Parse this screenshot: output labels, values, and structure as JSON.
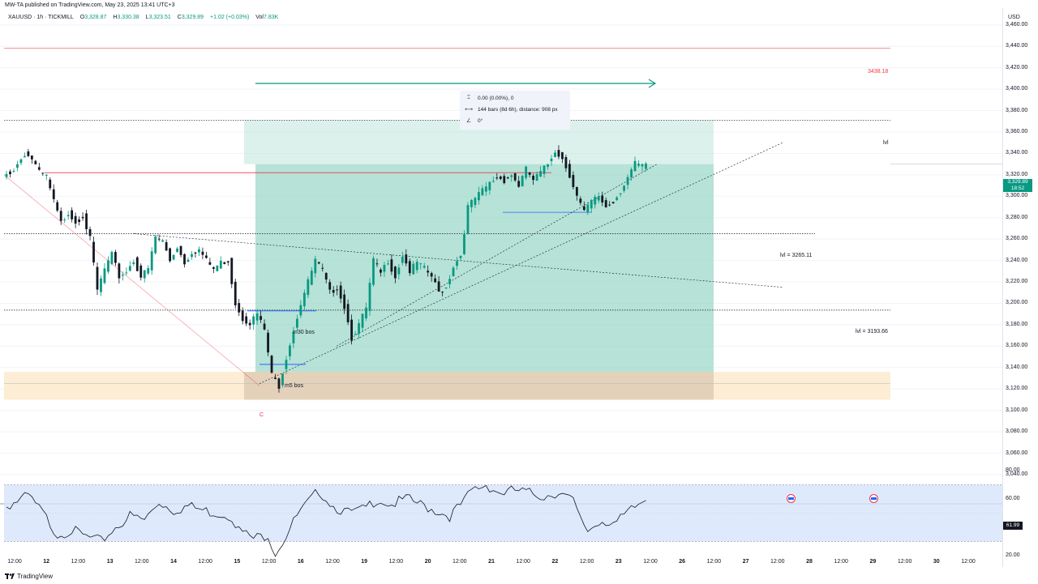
{
  "header": {
    "published": "MW-TA published on TradingView.com, May 23, 2025 13:41 UTC+3"
  },
  "legend": {
    "symbol": "XAUUSD · 1h · TICKMILL",
    "open_label": "O",
    "open": "3,328.87",
    "high_label": "H",
    "high": "3,330.38",
    "low_label": "L",
    "low": "3,323.51",
    "close_label": "C",
    "close": "3,329.89",
    "change": "+1.02 (+0.03%)",
    "vol_label": "Vol",
    "vol": "7.83K"
  },
  "price_axis": {
    "currency": "USD",
    "labels": [
      "3,460.00",
      "3,440.00",
      "3,420.00",
      "3,400.00",
      "3,380.00",
      "3,360.00",
      "3,340.00",
      "3,320.00",
      "3,300.00",
      "3,280.00",
      "3,260.00",
      "3,240.00",
      "3,220.00",
      "3,200.00",
      "3,180.00",
      "3,160.00",
      "3,140.00",
      "3,120.00",
      "3,100.00",
      "3,080.00",
      "3,060.00",
      "3,040.00"
    ],
    "current_price": "3,329.89",
    "countdown": "18:52"
  },
  "rsi_axis": {
    "labels": [
      "80.00",
      "60.00",
      "40.00",
      "20.00"
    ],
    "current": "61.99"
  },
  "time_axis": {
    "labels": [
      "12:00",
      "12",
      "12:00",
      "13",
      "12:00",
      "14",
      "12:00",
      "15",
      "12:00",
      "16",
      "12:00",
      "19",
      "12:00",
      "20",
      "12:00",
      "21",
      "12:00",
      "22",
      "12:00",
      "23",
      "12:00",
      "26",
      "12:00",
      "27",
      "12:00",
      "28",
      "12:00",
      "29",
      "12:00",
      "30",
      "12:00"
    ]
  },
  "measure_box": {
    "price_range": "0.00 (0.00%), 0",
    "bars_range": "144 bars (8d 6h), distance: 908 px",
    "angle": "0°"
  },
  "annotations": {
    "level_3438": "3438.18",
    "lvl": "lvl",
    "lvl_3265": "lvl = 3265.11",
    "lvl_3193": "lvl = 3193.66",
    "m30_bos": "m30 bos",
    "m5_bos": "m5 bos",
    "c_label": "C"
  },
  "footer": {
    "brand": "TradingView"
  },
  "colors": {
    "up": "#089981",
    "down": "#131722",
    "zone_green": "#9ed8c9",
    "zone_orange": "#fdebcf",
    "accent_red": "#f23645",
    "accent_blue": "#2962ff",
    "rsi": "#131722",
    "rsi_band": "#d6e4fb"
  },
  "chart_data": {
    "type": "candlestick",
    "symbol": "XAUUSD",
    "timeframe": "1h",
    "ylim": [
      3030,
      3475
    ],
    "rsi_ylim": [
      20,
      80
    ],
    "horizontal_levels": [
      3438.18,
      3371,
      3265.11,
      3193.66
    ],
    "price_path": [
      [
        0,
        3318
      ],
      [
        3,
        3325
      ],
      [
        6,
        3340
      ],
      [
        8,
        3335
      ],
      [
        10,
        3322
      ],
      [
        12,
        3318
      ],
      [
        14,
        3295
      ],
      [
        16,
        3275
      ],
      [
        18,
        3285
      ],
      [
        20,
        3276
      ],
      [
        22,
        3282
      ],
      [
        24,
        3260
      ],
      [
        26,
        3212
      ],
      [
        28,
        3232
      ],
      [
        30,
        3245
      ],
      [
        32,
        3225
      ],
      [
        34,
        3230
      ],
      [
        36,
        3240
      ],
      [
        38,
        3225
      ],
      [
        40,
        3232
      ],
      [
        42,
        3262
      ],
      [
        44,
        3258
      ],
      [
        46,
        3240
      ],
      [
        48,
        3253
      ],
      [
        50,
        3238
      ],
      [
        52,
        3248
      ],
      [
        54,
        3250
      ],
      [
        56,
        3240
      ],
      [
        58,
        3232
      ],
      [
        60,
        3238
      ],
      [
        62,
        3240
      ],
      [
        64,
        3200
      ],
      [
        66,
        3186
      ],
      [
        68,
        3182
      ],
      [
        70,
        3190
      ],
      [
        72,
        3175
      ],
      [
        74,
        3133
      ],
      [
        76,
        3123
      ],
      [
        78,
        3150
      ],
      [
        80,
        3175
      ],
      [
        82,
        3200
      ],
      [
        84,
        3220
      ],
      [
        86,
        3240
      ],
      [
        88,
        3230
      ],
      [
        90,
        3210
      ],
      [
        92,
        3215
      ],
      [
        94,
        3197
      ],
      [
        96,
        3168
      ],
      [
        98,
        3180
      ],
      [
        100,
        3195
      ],
      [
        102,
        3240
      ],
      [
        104,
        3228
      ],
      [
        106,
        3240
      ],
      [
        108,
        3225
      ],
      [
        110,
        3245
      ],
      [
        112,
        3230
      ],
      [
        114,
        3238
      ],
      [
        116,
        3232
      ],
      [
        118,
        3225
      ],
      [
        120,
        3210
      ],
      [
        122,
        3215
      ],
      [
        124,
        3235
      ],
      [
        126,
        3245
      ],
      [
        128,
        3290
      ],
      [
        130,
        3298
      ],
      [
        132,
        3305
      ],
      [
        134,
        3312
      ],
      [
        136,
        3318
      ],
      [
        138,
        3315
      ],
      [
        140,
        3320
      ],
      [
        142,
        3310
      ],
      [
        144,
        3325
      ],
      [
        146,
        3315
      ],
      [
        148,
        3322
      ],
      [
        150,
        3330
      ],
      [
        152,
        3343
      ],
      [
        154,
        3335
      ],
      [
        156,
        3320
      ],
      [
        158,
        3300
      ],
      [
        160,
        3285
      ],
      [
        162,
        3295
      ],
      [
        164,
        3300
      ],
      [
        166,
        3290
      ],
      [
        168,
        3295
      ],
      [
        170,
        3305
      ],
      [
        172,
        3318
      ],
      [
        174,
        3330
      ],
      [
        176,
        3328
      ]
    ],
    "rsi_path": [
      [
        0,
        55
      ],
      [
        6,
        62
      ],
      [
        10,
        50
      ],
      [
        14,
        35
      ],
      [
        18,
        38
      ],
      [
        22,
        33
      ],
      [
        26,
        30
      ],
      [
        30,
        40
      ],
      [
        34,
        48
      ],
      [
        38,
        45
      ],
      [
        42,
        58
      ],
      [
        46,
        52
      ],
      [
        50,
        55
      ],
      [
        54,
        52
      ],
      [
        58,
        50
      ],
      [
        62,
        48
      ],
      [
        64,
        38
      ],
      [
        68,
        32
      ],
      [
        72,
        35
      ],
      [
        74,
        22
      ],
      [
        76,
        30
      ],
      [
        80,
        48
      ],
      [
        84,
        60
      ],
      [
        86,
        66
      ],
      [
        90,
        55
      ],
      [
        94,
        50
      ],
      [
        98,
        52
      ],
      [
        102,
        60
      ],
      [
        106,
        56
      ],
      [
        110,
        60
      ],
      [
        114,
        56
      ],
      [
        118,
        52
      ],
      [
        122,
        48
      ],
      [
        126,
        58
      ],
      [
        128,
        66
      ],
      [
        132,
        70
      ],
      [
        136,
        64
      ],
      [
        140,
        66
      ],
      [
        144,
        64
      ],
      [
        148,
        62
      ],
      [
        152,
        65
      ],
      [
        156,
        58
      ],
      [
        158,
        45
      ],
      [
        160,
        38
      ],
      [
        164,
        45
      ],
      [
        168,
        43
      ],
      [
        172,
        52
      ],
      [
        176,
        60
      ]
    ]
  }
}
